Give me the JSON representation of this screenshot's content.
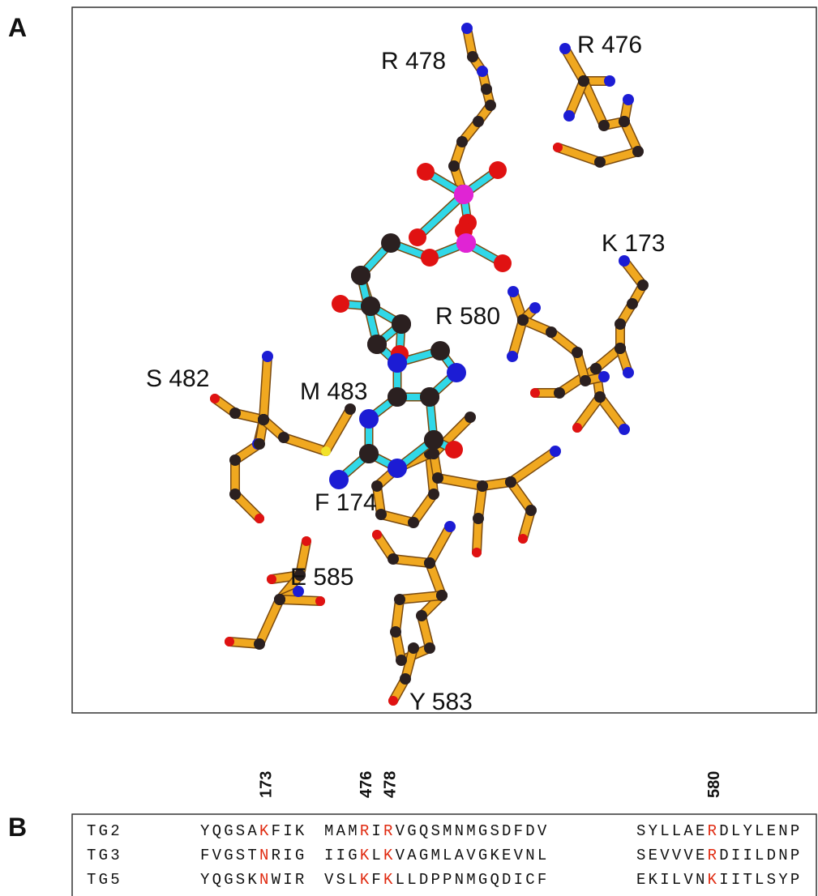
{
  "panel_a": {
    "label": "A",
    "residues": [
      "R 478",
      "R 476",
      "K 173",
      "R 580",
      "S 482",
      "M 483",
      "F 174",
      "E 585",
      "Y 583"
    ]
  },
  "panel_b": {
    "label": "B",
    "positions": [
      "173",
      "476",
      "478",
      "580"
    ],
    "rows": [
      {
        "name": "TG2",
        "blocks": [
          [
            "YQGSA",
            "K",
            "FIK"
          ],
          [
            "MAM",
            "R",
            "I",
            "R",
            "VGQSMNMGSDFDV"
          ],
          [
            "SYLLAE",
            "R",
            "DLYLENP"
          ]
        ]
      },
      {
        "name": "TG3",
        "blocks": [
          [
            "FVGST",
            "N",
            "RIG"
          ],
          [
            "IIG",
            "K",
            "L",
            "K",
            "VAGMLAVGKEVNL"
          ],
          [
            "SEVVVE",
            "R",
            "DIILDNP"
          ]
        ]
      },
      {
        "name": "TG5",
        "blocks": [
          [
            "YQGSK",
            "N",
            "WIR"
          ],
          [
            "VSL",
            "K",
            "F",
            "K",
            "LLDPPNMGQDICF"
          ],
          [
            "EKILVN",
            "K",
            "IITLSYP"
          ]
        ]
      }
    ]
  }
}
